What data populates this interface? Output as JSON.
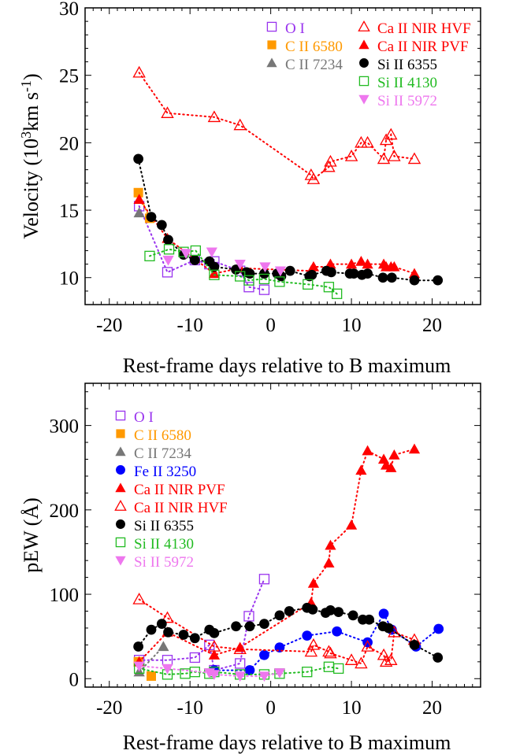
{
  "chart_data": [
    {
      "type": "scatter",
      "xlabel": "Rest-frame days relative to B maximum",
      "ylabel_prefix": "Velocity (10",
      "ylabel_exp1": "3",
      "ylabel_mid": "km s",
      "ylabel_exp2": "-1",
      "ylabel_suffix": ")",
      "xlim": [
        -23,
        26
      ],
      "ylim": [
        8,
        30
      ],
      "xticks": [
        -20,
        -10,
        0,
        10,
        20
      ],
      "yticks": [
        10,
        15,
        20,
        25,
        30
      ],
      "legend_position": "top-right",
      "series": [
        {
          "name": "O I",
          "marker": "square-open",
          "color": "#9933ee",
          "connect": true,
          "points": [
            [
              -16.3,
              15.3
            ],
            [
              -12.8,
              10.4
            ],
            [
              -9.4,
              11.3
            ],
            [
              -7.6,
              11.0
            ],
            [
              -7.0,
              11.2
            ],
            [
              -3.8,
              10.5
            ],
            [
              -2.7,
              9.3
            ],
            [
              -0.8,
              9.1
            ]
          ]
        },
        {
          "name": "C II 6580",
          "marker": "square",
          "color": "#ff9900",
          "connect": true,
          "points": [
            [
              -16.4,
              16.3
            ],
            [
              -15.0,
              14.4
            ]
          ]
        },
        {
          "name": "C II 7234",
          "marker": "triangle",
          "color": "#777777",
          "connect": false,
          "points": [
            [
              -16.3,
              14.8
            ]
          ]
        },
        {
          "name": "Ca II NIR HVF",
          "marker": "triangle-open",
          "color": "#ff0000",
          "connect": true,
          "points": [
            [
              -16.3,
              25.2
            ],
            [
              -12.8,
              22.2
            ],
            [
              -7.0,
              21.9
            ],
            [
              -3.8,
              21.3
            ],
            [
              5.0,
              17.6
            ],
            [
              5.3,
              17.3
            ],
            [
              7.2,
              18.2
            ],
            [
              7.4,
              18.6
            ],
            [
              10.0,
              19.0
            ],
            [
              11.2,
              20.0
            ],
            [
              12.0,
              20.0
            ],
            [
              14.0,
              18.8
            ],
            [
              14.3,
              20.2
            ],
            [
              14.9,
              20.6
            ],
            [
              15.3,
              19.0
            ],
            [
              17.8,
              18.8
            ]
          ]
        },
        {
          "name": "Ca II NIR PVF",
          "marker": "triangle",
          "color": "#ff0000",
          "connect": true,
          "points": [
            [
              -16.3,
              15.8
            ],
            [
              -12.8,
              12.9
            ],
            [
              -7.0,
              10.3
            ],
            [
              -3.8,
              10.7
            ],
            [
              5.0,
              10.5
            ],
            [
              5.3,
              10.8
            ],
            [
              7.2,
              10.8
            ],
            [
              7.4,
              11.0
            ],
            [
              10.0,
              11.0
            ],
            [
              11.2,
              11.2
            ],
            [
              12.0,
              11.0
            ],
            [
              14.0,
              11.0
            ],
            [
              14.3,
              10.8
            ],
            [
              14.9,
              10.8
            ],
            [
              15.3,
              10.8
            ],
            [
              17.8,
              10.3
            ]
          ]
        },
        {
          "name": "Si II 6355",
          "marker": "circle",
          "color": "#000000",
          "connect": true,
          "points": [
            [
              -16.4,
              18.8
            ],
            [
              -14.8,
              14.5
            ],
            [
              -13.5,
              13.9
            ],
            [
              -12.7,
              12.8
            ],
            [
              -10.8,
              11.7
            ],
            [
              -9.4,
              11.3
            ],
            [
              -7.6,
              11.2
            ],
            [
              -7.0,
              10.8
            ],
            [
              -4.3,
              10.6
            ],
            [
              -3.0,
              10.4
            ],
            [
              -2.6,
              10.3
            ],
            [
              -0.8,
              10.3
            ],
            [
              0.8,
              10.3
            ],
            [
              1.3,
              10.1
            ],
            [
              2.4,
              10.5
            ],
            [
              4.8,
              10.1
            ],
            [
              5.1,
              10.2
            ],
            [
              6.9,
              10.5
            ],
            [
              7.5,
              10.4
            ],
            [
              9.8,
              10.3
            ],
            [
              10.3,
              10.3
            ],
            [
              11.3,
              10.2
            ],
            [
              12.0,
              10.3
            ],
            [
              13.9,
              10.0
            ],
            [
              15.0,
              10.0
            ],
            [
              17.8,
              9.8
            ],
            [
              20.7,
              9.8
            ]
          ]
        },
        {
          "name": "Si II 4130",
          "marker": "square-open",
          "color": "#22bb22",
          "connect": true,
          "points": [
            [
              -15.0,
              11.6
            ],
            [
              -12.6,
              12.1
            ],
            [
              -10.8,
              11.9
            ],
            [
              -9.3,
              12.0
            ],
            [
              -7.0,
              10.2
            ],
            [
              -3.8,
              10.1
            ],
            [
              -2.7,
              9.8
            ],
            [
              -0.8,
              9.9
            ],
            [
              1.1,
              9.7
            ],
            [
              4.6,
              9.5
            ],
            [
              7.2,
              9.3
            ],
            [
              8.2,
              8.8
            ]
          ]
        },
        {
          "name": "Si II 5972",
          "marker": "triangle-down",
          "color": "#ee77ee",
          "connect": false,
          "points": [
            [
              -12.7,
              11.3
            ],
            [
              -10.5,
              11.8
            ],
            [
              -7.3,
              11.9
            ],
            [
              -3.8,
              11.0
            ],
            [
              -0.7,
              10.8
            ],
            [
              1.2,
              10.5
            ]
          ]
        }
      ],
      "legend": [
        {
          "name": "O I",
          "col": 0,
          "row": 0
        },
        {
          "name": "C II 6580",
          "col": 0,
          "row": 1
        },
        {
          "name": "C II 7234",
          "col": 0,
          "row": 2
        },
        {
          "name": "Ca II NIR HVF",
          "col": 1,
          "row": 0
        },
        {
          "name": "Ca II NIR PVF",
          "col": 1,
          "row": 1
        },
        {
          "name": "Si II 6355",
          "col": 1,
          "row": 2
        },
        {
          "name": "Si II 4130",
          "col": 1,
          "row": 3
        },
        {
          "name": "Si II 5972",
          "col": 1,
          "row": 4
        }
      ]
    },
    {
      "type": "scatter",
      "xlabel": "Rest-frame days relative to B maximum",
      "ylabel_prefix": "pEW (Å)",
      "xlim": [
        -23,
        26
      ],
      "ylim": [
        -10,
        350
      ],
      "xticks": [
        -20,
        -10,
        0,
        10,
        20
      ],
      "yticks": [
        0,
        100,
        200,
        300
      ],
      "legend_position": "top-left",
      "series": [
        {
          "name": "O I",
          "marker": "square-open",
          "color": "#9933ee",
          "connect": true,
          "points": [
            [
              -16.3,
              22
            ],
            [
              -12.8,
              22
            ],
            [
              -9.4,
              25
            ],
            [
              -7.6,
              40
            ],
            [
              -7.0,
              10
            ],
            [
              -3.8,
              18
            ],
            [
              -2.7,
              74
            ],
            [
              -0.8,
              118
            ]
          ]
        },
        {
          "name": "C II 6580",
          "marker": "square",
          "color": "#ff9900",
          "connect": false,
          "points": [
            [
              -16.4,
              20
            ],
            [
              -14.8,
              3
            ]
          ]
        },
        {
          "name": "C II 7234",
          "marker": "triangle",
          "color": "#777777",
          "connect": true,
          "points": [
            [
              -16.3,
              8
            ],
            [
              -13.3,
              38
            ]
          ]
        },
        {
          "name": "Fe II 3250",
          "marker": "circle",
          "color": "#0000ff",
          "connect": true,
          "points": [
            [
              -7.0,
              10
            ],
            [
              -2.6,
              10
            ],
            [
              -0.8,
              28
            ],
            [
              1.1,
              37
            ],
            [
              4.5,
              51
            ],
            [
              8.2,
              56
            ],
            [
              12.0,
              43
            ],
            [
              14.0,
              77
            ],
            [
              15.0,
              58
            ],
            [
              18.0,
              38
            ],
            [
              20.8,
              59
            ]
          ]
        },
        {
          "name": "Ca II NIR PVF",
          "marker": "triangle",
          "color": "#ff0000",
          "connect": true,
          "points": [
            [
              -16.3,
              20
            ],
            [
              -12.8,
              55
            ],
            [
              -7.0,
              28
            ],
            [
              -3.8,
              37
            ],
            [
              5.0,
              90
            ],
            [
              5.3,
              113
            ],
            [
              7.2,
              137
            ],
            [
              7.4,
              158
            ],
            [
              10.0,
              182
            ],
            [
              11.2,
              247
            ],
            [
              12.0,
              270
            ],
            [
              14.0,
              260
            ],
            [
              14.3,
              253
            ],
            [
              14.9,
              250
            ],
            [
              15.3,
              265
            ],
            [
              17.8,
              272
            ]
          ]
        },
        {
          "name": "Ca II NIR HVF",
          "marker": "triangle-open",
          "color": "#ff0000",
          "connect": true,
          "points": [
            [
              -16.3,
              94
            ],
            [
              -12.8,
              72
            ],
            [
              -7.0,
              38
            ],
            [
              -3.8,
              35
            ],
            [
              5.0,
              32
            ],
            [
              5.3,
              40
            ],
            [
              7.2,
              32
            ],
            [
              7.4,
              30
            ],
            [
              10.0,
              22
            ],
            [
              11.2,
              18
            ],
            [
              12.0,
              38
            ],
            [
              14.0,
              28
            ],
            [
              14.3,
              20
            ],
            [
              14.9,
              22
            ],
            [
              15.3,
              55
            ],
            [
              17.8,
              46
            ]
          ]
        },
        {
          "name": "Si II 6355",
          "marker": "circle",
          "color": "#000000",
          "connect": true,
          "points": [
            [
              -16.4,
              38
            ],
            [
              -14.8,
              58
            ],
            [
              -13.5,
              65
            ],
            [
              -12.7,
              55
            ],
            [
              -10.8,
              52
            ],
            [
              -9.4,
              48
            ],
            [
              -7.6,
              58
            ],
            [
              -7.0,
              54
            ],
            [
              -4.3,
              62
            ],
            [
              -2.6,
              62
            ],
            [
              -0.8,
              65
            ],
            [
              1.1,
              75
            ],
            [
              2.3,
              80
            ],
            [
              4.5,
              84
            ],
            [
              5.2,
              82
            ],
            [
              6.8,
              78
            ],
            [
              7.4,
              81
            ],
            [
              8.4,
              79
            ],
            [
              10.2,
              75
            ],
            [
              11.4,
              70
            ],
            [
              12.2,
              70
            ],
            [
              13.9,
              62
            ],
            [
              14.6,
              60
            ],
            [
              17.8,
              40
            ],
            [
              20.7,
              25
            ]
          ]
        },
        {
          "name": "Si II 4130",
          "marker": "square-open",
          "color": "#22bb22",
          "connect": true,
          "points": [
            [
              -16.3,
              12
            ],
            [
              -12.8,
              5
            ],
            [
              -10.6,
              6
            ],
            [
              -9.4,
              8
            ],
            [
              -7.6,
              6
            ],
            [
              -7.0,
              8
            ],
            [
              -3.8,
              5
            ],
            [
              -0.8,
              5
            ],
            [
              1.1,
              6
            ],
            [
              4.5,
              8
            ],
            [
              7.2,
              14
            ],
            [
              8.4,
              12
            ]
          ]
        },
        {
          "name": "Si II 5972",
          "marker": "triangle-down",
          "color": "#ee77ee",
          "connect": true,
          "points": [
            [
              -16.3,
              15
            ],
            [
              -12.8,
              12
            ],
            [
              -7.6,
              7
            ],
            [
              -7.0,
              5
            ],
            [
              -3.8,
              3
            ],
            [
              -0.8,
              3
            ],
            [
              1.1,
              7
            ]
          ]
        }
      ],
      "legend": [
        {
          "name": "O I",
          "col": 0,
          "row": 0
        },
        {
          "name": "C II 6580",
          "col": 0,
          "row": 1
        },
        {
          "name": "C II 7234",
          "col": 0,
          "row": 2
        },
        {
          "name": "Fe II 3250",
          "col": 0,
          "row": 3
        },
        {
          "name": "Ca II NIR PVF",
          "col": 0,
          "row": 4
        },
        {
          "name": "Ca II NIR HVF",
          "col": 0,
          "row": 5
        },
        {
          "name": "Si II 6355",
          "col": 0,
          "row": 6
        },
        {
          "name": "Si II 4130",
          "col": 0,
          "row": 7
        },
        {
          "name": "Si II 5972",
          "col": 0,
          "row": 8
        }
      ]
    }
  ]
}
